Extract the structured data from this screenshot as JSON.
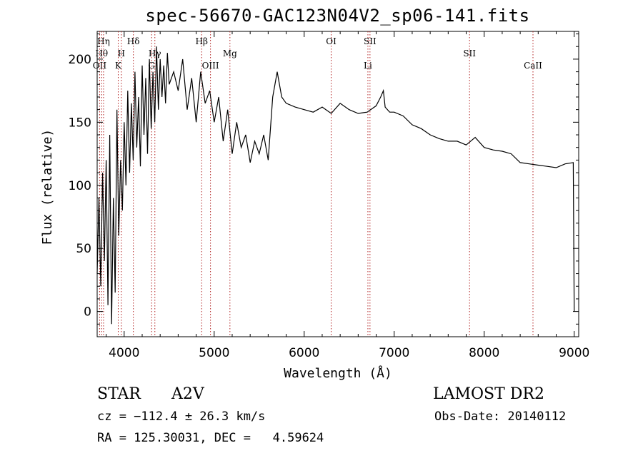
{
  "chart_data": {
    "type": "line",
    "title": "spec-56670-GAC123N04V2_sp06-141.fits",
    "xlabel": "Wavelength (Å)",
    "ylabel": "Flux (relative)",
    "xlim": [
      3700,
      9050
    ],
    "ylim": [
      -20,
      222
    ],
    "x_ticks": [
      4000,
      5000,
      6000,
      7000,
      8000,
      9000
    ],
    "y_ticks": [
      0,
      50,
      100,
      150,
      200
    ],
    "grid": false,
    "series": [
      {
        "color": "#000000",
        "x": [
          3700,
          3720,
          3740,
          3760,
          3780,
          3800,
          3820,
          3840,
          3860,
          3880,
          3900,
          3920,
          3940,
          3960,
          3980,
          4000,
          4020,
          4040,
          4060,
          4080,
          4100,
          4120,
          4140,
          4160,
          4180,
          4200,
          4220,
          4240,
          4260,
          4280,
          4300,
          4320,
          4340,
          4360,
          4380,
          4400,
          4420,
          4440,
          4460,
          4480,
          4500,
          4550,
          4600,
          4650,
          4700,
          4750,
          4800,
          4850,
          4900,
          4950,
          5000,
          5050,
          5100,
          5150,
          5200,
          5250,
          5300,
          5350,
          5400,
          5450,
          5500,
          5550,
          5600,
          5650,
          5700,
          5750,
          5800,
          5900,
          6000,
          6100,
          6200,
          6300,
          6400,
          6500,
          6600,
          6700,
          6800,
          6850,
          6880,
          6900,
          6950,
          7000,
          7100,
          7200,
          7300,
          7400,
          7500,
          7600,
          7700,
          7800,
          7900,
          8000,
          8100,
          8200,
          8300,
          8400,
          8500,
          8600,
          8700,
          8800,
          8900,
          8990,
          9000
        ],
        "y": [
          30,
          90,
          20,
          110,
          40,
          120,
          5,
          140,
          -10,
          90,
          15,
          160,
          60,
          120,
          80,
          150,
          100,
          175,
          110,
          165,
          120,
          190,
          130,
          170,
          115,
          195,
          140,
          185,
          125,
          200,
          145,
          190,
          150,
          210,
          160,
          200,
          170,
          195,
          165,
          205,
          180,
          190,
          175,
          200,
          160,
          185,
          150,
          190,
          165,
          175,
          150,
          170,
          135,
          160,
          125,
          150,
          130,
          140,
          118,
          135,
          125,
          140,
          120,
          170,
          190,
          170,
          165,
          162,
          160,
          158,
          162,
          157,
          165,
          160,
          157,
          158,
          163,
          170,
          175,
          162,
          158,
          158,
          155,
          148,
          145,
          140,
          137,
          135,
          135,
          132,
          138,
          130,
          128,
          127,
          125,
          118,
          117,
          116,
          115,
          114,
          117,
          118,
          0
        ]
      }
    ],
    "lines": [
      {
        "x": 3727,
        "label": "OII",
        "row": 3
      },
      {
        "x": 3750,
        "label": "Hθ",
        "row": 2
      },
      {
        "x": 3771,
        "label": "Hη",
        "row": 1
      },
      {
        "x": 3934,
        "label": "K",
        "row": 3
      },
      {
        "x": 3969,
        "label": "H",
        "row": 2
      },
      {
        "x": 4102,
        "label": "Hδ",
        "row": 1
      },
      {
        "x": 4305,
        "label": "G",
        "row": 3
      },
      {
        "x": 4341,
        "label": "Hγ",
        "row": 2
      },
      {
        "x": 4861,
        "label": "Hβ",
        "row": 1
      },
      {
        "x": 4959,
        "label": "OIII",
        "row": 3
      },
      {
        "x": 5175,
        "label": "Mg",
        "row": 2
      },
      {
        "x": 6300,
        "label": "OI",
        "row": 1
      },
      {
        "x": 6708,
        "label": "Li",
        "row": 3
      },
      {
        "x": 6731,
        "label": "SII",
        "row": 1
      },
      {
        "x": 7837,
        "label": "SII",
        "row": 2
      },
      {
        "x": 8542,
        "label": "CaII",
        "row": 3
      }
    ]
  },
  "info": {
    "object_type": "STAR",
    "subclass": "A2V",
    "survey": "LAMOST DR2",
    "cz": "cz = −112.4 ± 26.3 km/s",
    "obs_date": "Obs-Date: 20140112",
    "coords": "RA = 125.30031, DEC =   4.59624"
  }
}
